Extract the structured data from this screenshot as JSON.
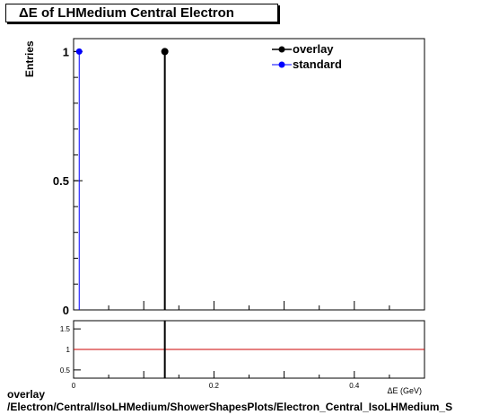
{
  "chart_data": [
    {
      "type": "line",
      "title": "ΔE of LHMedium Central  Electron",
      "ylabel": "Entries",
      "xlabel": "ΔE (GeV)",
      "xlim": [
        0,
        0.5
      ],
      "ylim": [
        0,
        1.05
      ],
      "y_ticks": [
        0,
        0.5,
        1
      ],
      "y_tick_labels": [
        "0",
        "0.5",
        "1"
      ],
      "legend_placement": "top-right",
      "series": [
        {
          "name": "overlay",
          "color": "#000000",
          "x": [
            0.13
          ],
          "y": [
            1
          ]
        },
        {
          "name": "standard",
          "color": "#0000ff",
          "x": [
            0.008
          ],
          "y": [
            1
          ]
        }
      ]
    },
    {
      "type": "line",
      "title": "",
      "xlim": [
        0,
        0.5
      ],
      "ylim": [
        0.3,
        1.7
      ],
      "x_ticks": [
        0,
        0.2,
        0.4
      ],
      "x_tick_labels": [
        "0",
        "0.2",
        "0.4"
      ],
      "y_ticks": [
        0.5,
        1,
        1.5
      ],
      "y_tick_labels": [
        "0.5",
        "1",
        "1.5"
      ],
      "reference_line": {
        "y": 1,
        "color": "#cc0000"
      },
      "markers": [
        {
          "x": 0.13,
          "color": "#000000"
        }
      ]
    }
  ],
  "footer": {
    "line1": "overlay",
    "line2": "/Electron/Central/IsoLHMedium/ShowerShapesPlots/Electron_Central_IsoLHMedium_S"
  }
}
